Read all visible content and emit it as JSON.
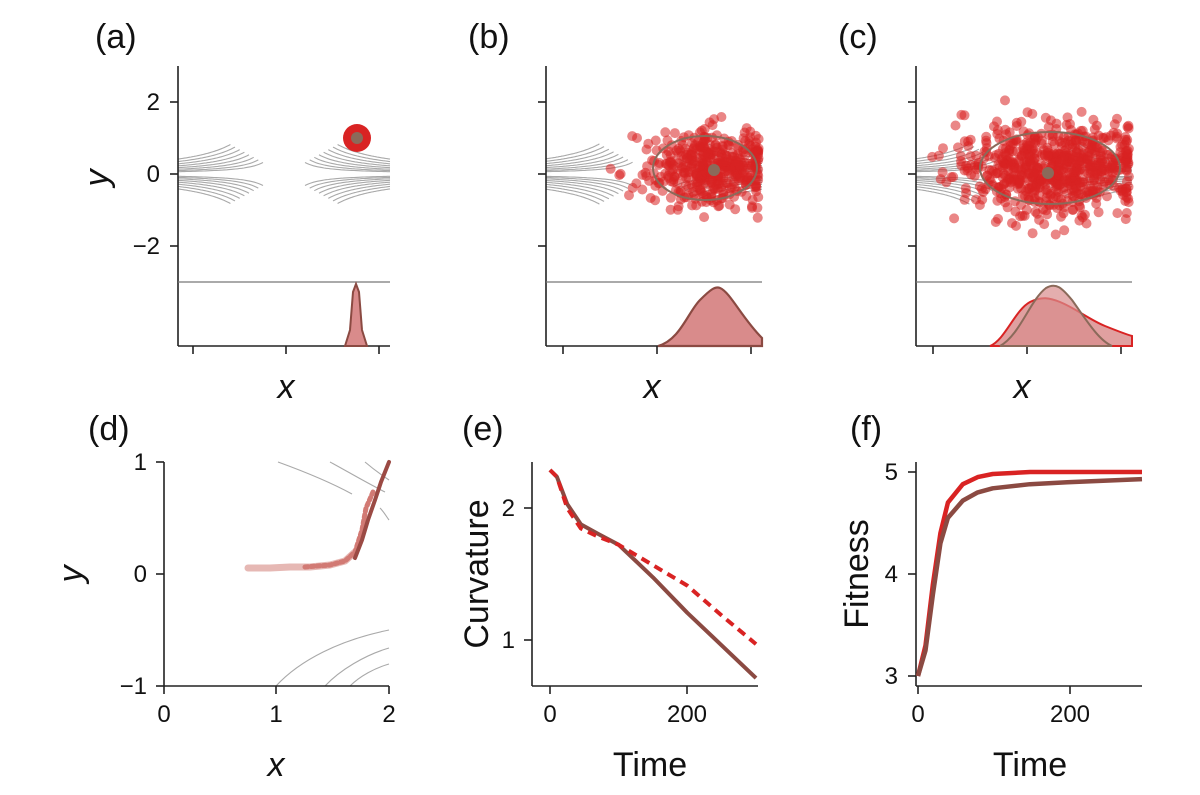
{
  "colors": {
    "red": "#d92323",
    "brown": "#8b4a42",
    "contour": "#a9a9a9",
    "axis": "#222222",
    "hist_fill": "#d98b8b"
  },
  "chart_data": [
    {
      "panel": "(a)",
      "type": "scatter",
      "xlabel": "x",
      "ylabel": "y",
      "ylim": [
        -3,
        3
      ],
      "yticks": [
        "2",
        "0",
        "−2"
      ],
      "contours": "saddle potential",
      "cloud": {
        "cx": 1.9,
        "cy": 1.0,
        "rx": 0.15,
        "ry": 0.15
      },
      "mean": [
        1.9,
        1.0
      ],
      "marginal": "narrow peak near x = 1.9"
    },
    {
      "panel": "(b)",
      "type": "scatter",
      "xlabel": "x",
      "ylabel": "",
      "ylim": [
        -3,
        3
      ],
      "cloud": {
        "cx": 1.9,
        "cy": 0.1,
        "rx": 1.0,
        "ry": 0.7
      },
      "mean": [
        1.9,
        0.1
      ],
      "marginal": "peak near x = 1.9"
    },
    {
      "panel": "(c)",
      "type": "scatter",
      "xlabel": "x",
      "ylabel": "",
      "ylim": [
        -3,
        3
      ],
      "cloud": {
        "cx": 1.9,
        "cy": 0.0,
        "rx": 1.8,
        "ry": 0.8
      },
      "mean": [
        1.9,
        0.0
      ],
      "marginal": "broad distribution near x = 1.9"
    },
    {
      "panel": "(d)",
      "type": "line",
      "xlabel": "x",
      "ylabel": "y",
      "xlim": [
        0,
        2
      ],
      "ylim": [
        -1,
        1
      ],
      "xticks": [
        "0",
        "1",
        "2"
      ],
      "yticks": [
        "1",
        "0",
        "−1"
      ],
      "trajectory": [
        [
          2.0,
          1.0
        ],
        [
          1.9,
          0.78
        ],
        [
          1.8,
          0.45
        ],
        [
          1.75,
          0.18
        ],
        [
          1.6,
          0.08
        ],
        [
          1.3,
          0.05
        ],
        [
          1.0,
          0.04
        ],
        [
          0.75,
          0.03
        ]
      ]
    },
    {
      "panel": "(e)",
      "type": "line",
      "xlabel": "Time",
      "ylabel": "Curvature",
      "xlim": [
        0,
        300
      ],
      "ylim": [
        0.7,
        2.3
      ],
      "xticks": [
        "0",
        "200"
      ],
      "yticks": [
        "1",
        "2"
      ],
      "series": [
        {
          "style": "solid brown",
          "x": [
            0,
            10,
            25,
            45,
            70,
            100,
            150,
            200,
            250,
            300
          ],
          "y": [
            2.25,
            2.2,
            2.0,
            1.85,
            1.78,
            1.7,
            1.46,
            1.2,
            0.96,
            0.72
          ]
        },
        {
          "style": "dashed red",
          "x": [
            0,
            10,
            25,
            45,
            70,
            100,
            150,
            200,
            250,
            300
          ],
          "y": [
            2.25,
            2.2,
            1.97,
            1.82,
            1.76,
            1.7,
            1.55,
            1.4,
            1.18,
            0.97
          ]
        }
      ]
    },
    {
      "panel": "(f)",
      "type": "line",
      "xlabel": "Time",
      "ylabel": "Fitness",
      "xlim": [
        0,
        300
      ],
      "ylim": [
        2.9,
        5.1
      ],
      "xticks": [
        "0",
        "200"
      ],
      "yticks": [
        "3",
        "4",
        "5"
      ],
      "series": [
        {
          "style": "red",
          "x": [
            0,
            10,
            20,
            30,
            40,
            60,
            80,
            100,
            150,
            200,
            300
          ],
          "y": [
            3.0,
            3.3,
            3.9,
            4.4,
            4.7,
            4.88,
            4.95,
            4.98,
            5.0,
            5.0,
            5.0
          ]
        },
        {
          "style": "brown",
          "x": [
            0,
            10,
            20,
            30,
            40,
            60,
            80,
            100,
            150,
            200,
            300
          ],
          "y": [
            3.0,
            3.25,
            3.8,
            4.3,
            4.55,
            4.72,
            4.8,
            4.84,
            4.88,
            4.9,
            4.93
          ]
        }
      ]
    }
  ]
}
